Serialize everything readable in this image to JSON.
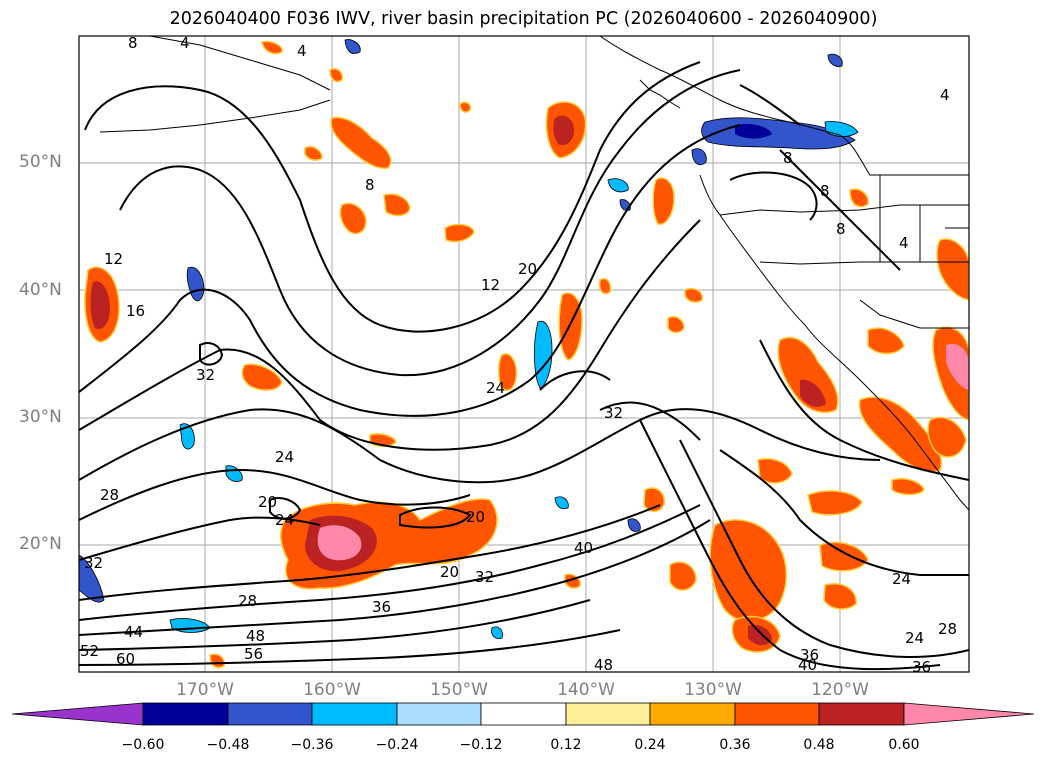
{
  "title": "2026040400 F036 IWV, river basin precipitation PC (2026040600 - 2026040900)",
  "lat_ticks": [
    "50°N",
    "40°N",
    "30°N",
    "20°N"
  ],
  "lon_ticks": [
    "170°W",
    "160°W",
    "150°W",
    "140°W",
    "130°W",
    "120°W"
  ],
  "contour_labels": [
    "8",
    "4",
    "4",
    "8",
    "8",
    "8",
    "8",
    "4",
    "4",
    "12",
    "16",
    "12",
    "20",
    "32",
    "24",
    "32",
    "24",
    "28",
    "20",
    "24",
    "20",
    "20",
    "32",
    "40",
    "28",
    "36",
    "32",
    "44",
    "48",
    "56",
    "52",
    "60",
    "48",
    "24",
    "24",
    "28",
    "36",
    "40",
    "36"
  ],
  "colorbar": {
    "colors": [
      "#9933cc",
      "#000099",
      "#3355cc",
      "#00bbff",
      "#aaddff",
      "#ffffff",
      "#ffee99",
      "#ffaa00",
      "#ff5500",
      "#bb2222",
      "#ff88aa"
    ],
    "ticks": [
      "−0.60",
      "−0.48",
      "−0.36",
      "−0.24",
      "−0.12",
      "0.12",
      "0.24",
      "0.36",
      "0.48",
      "0.60"
    ]
  },
  "colors": {
    "grid": "#aaaaaa",
    "coast": "#000000",
    "contour": "#000000",
    "tick_label": "#808080"
  }
}
